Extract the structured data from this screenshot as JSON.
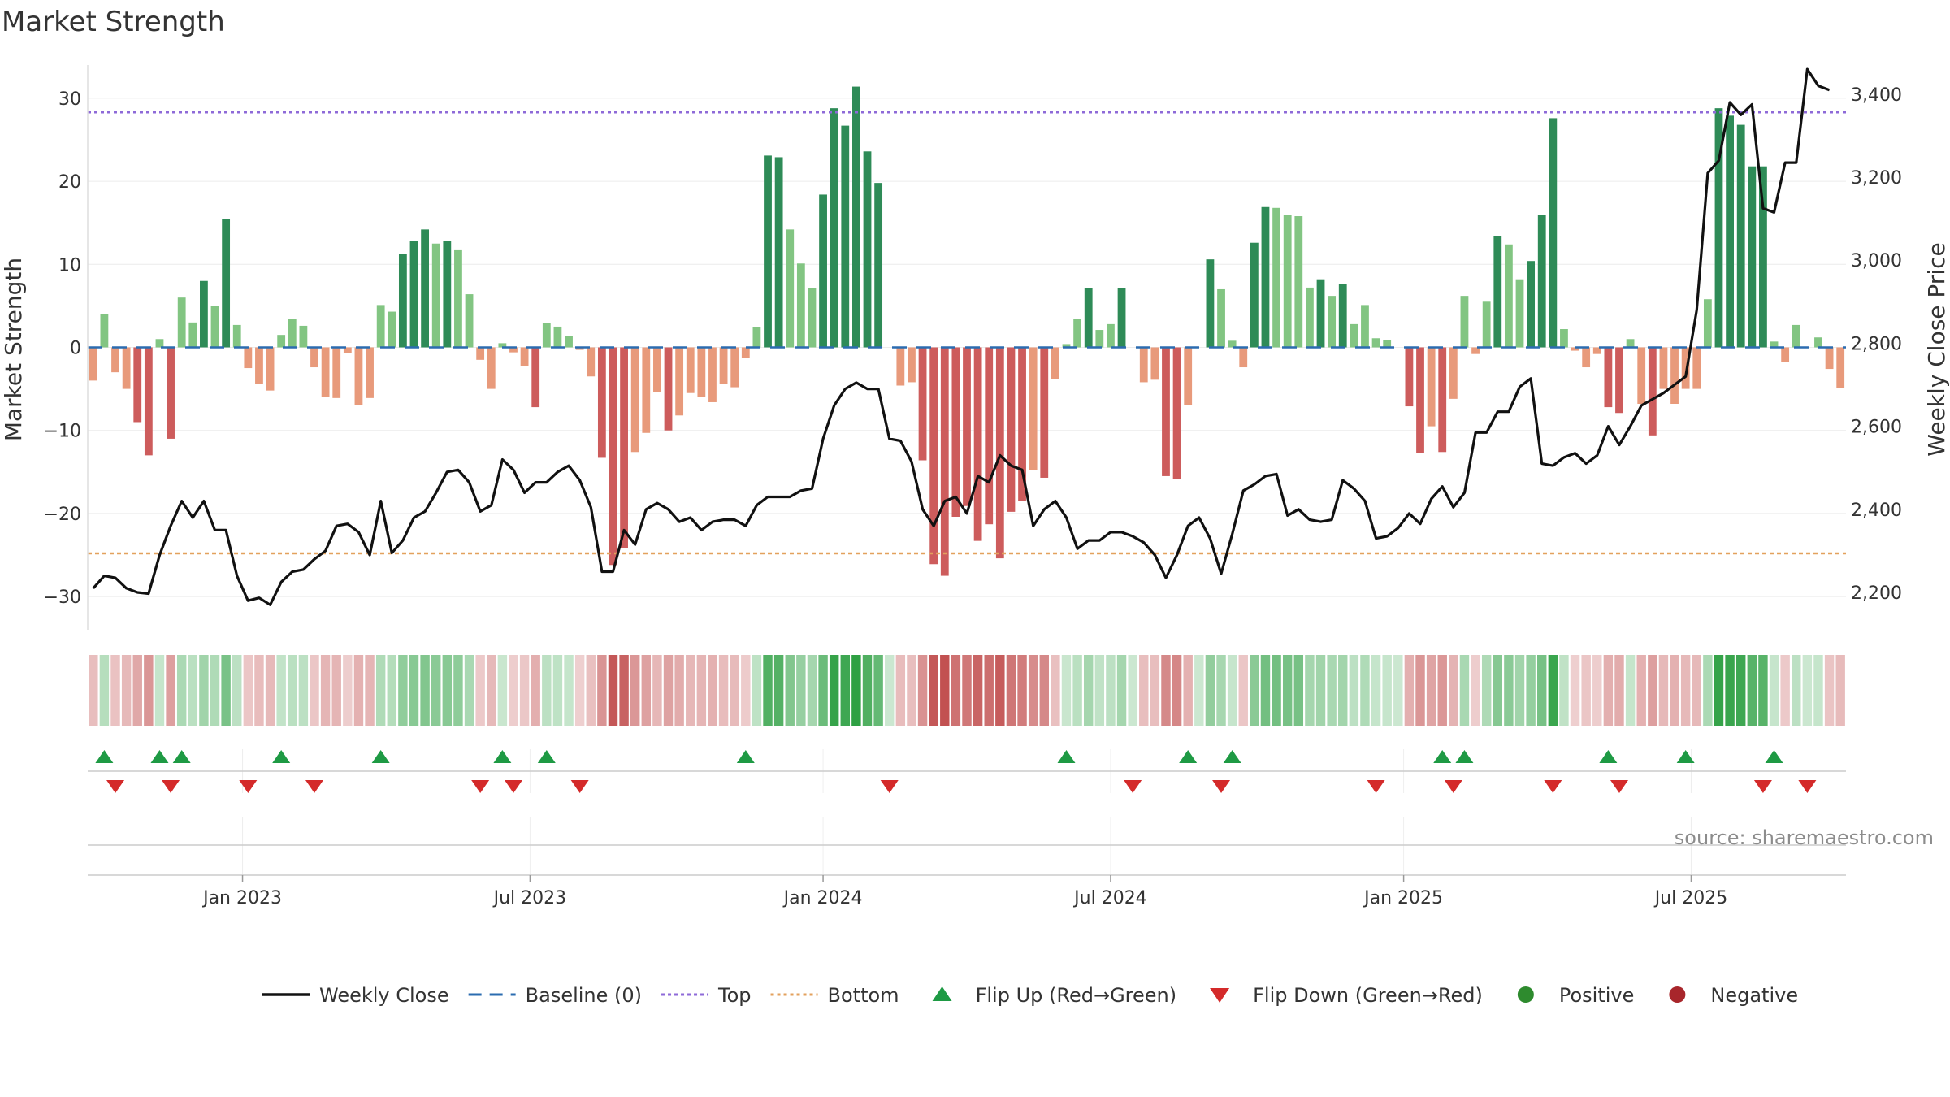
{
  "chart_data": {
    "type": "bar",
    "title": "Market Strength",
    "ylabel": "Market Strength",
    "y2label": "Weekly Close Price",
    "ylim": [
      -34,
      34
    ],
    "y2lim": [
      2110,
      3470
    ],
    "yticks": [
      30,
      20,
      10,
      0,
      -10,
      -20,
      -30
    ],
    "ytick_labels": [
      "30",
      "20",
      "10",
      "0",
      "−10",
      "−20",
      "−30"
    ],
    "y2ticks": [
      3400,
      3200,
      3000,
      2800,
      2600,
      2400,
      2200
    ],
    "y2tick_labels": [
      "3,400",
      "3,200",
      "3,000",
      "2,800",
      "2,600",
      "2,400",
      "2,200"
    ],
    "top_level": 28.3,
    "bottom_level": -24.8,
    "x_range": [
      0,
      157
    ],
    "xticks": [
      {
        "pos": 14,
        "label": "Jan 2023"
      },
      {
        "pos": 40,
        "label": "Jul 2023"
      },
      {
        "pos": 66.5,
        "label": "Jan 2024"
      },
      {
        "pos": 92.5,
        "label": "Jul 2024"
      },
      {
        "pos": 119,
        "label": "Jan 2025"
      },
      {
        "pos": 145,
        "label": "Jul 2025"
      }
    ],
    "strength": [
      -4,
      4,
      -3,
      -5,
      -9,
      -13,
      1,
      -11,
      6,
      3,
      8,
      5,
      15.5,
      2.7,
      -2.5,
      -4.4,
      -5.2,
      1.5,
      3.4,
      2.6,
      -2.4,
      -6,
      -6.1,
      -0.7,
      -6.9,
      -6.1,
      5.1,
      4.3,
      11.3,
      12.8,
      14.2,
      12.5,
      12.8,
      11.7,
      6.4,
      -1.5,
      -5,
      0.5,
      -0.6,
      -2.2,
      -7.2,
      2.9,
      2.5,
      1.4,
      -0.3,
      -3.5,
      -13.3,
      -26.2,
      -24.2,
      -12.6,
      -10.3,
      -5.4,
      -10,
      -8.2,
      -5.5,
      -6,
      -6.6,
      -4.4,
      -4.8,
      -1.3,
      2.4,
      23.1,
      22.9,
      14.2,
      10.1,
      7.1,
      18.4,
      28.8,
      26.7,
      31.4,
      23.6,
      19.8,
      0,
      -4.6,
      -4.2,
      -13.6,
      -26.1,
      -27.5,
      -20.4,
      -19.1,
      -23.3,
      -21.3,
      -25.4,
      -19.8,
      -18.5,
      -14.8,
      -15.7,
      -3.8,
      0.4,
      3.4,
      7.1,
      2.1,
      2.8,
      7.1,
      0,
      -4.2,
      -3.9,
      -15.5,
      -15.9,
      -6.9,
      0,
      10.6,
      7,
      0.8,
      -2.4,
      12.6,
      16.9,
      16.8,
      15.9,
      15.8,
      7.2,
      8.2,
      6.2,
      7.6,
      2.8,
      5.1,
      1.1,
      0.9,
      0,
      -7.1,
      -12.7,
      -9.5,
      -12.6,
      -6.2,
      6.2,
      -0.8,
      5.5,
      13.4,
      12.4,
      8.2,
      10.4,
      15.9,
      27.6,
      2.2,
      -0.4,
      -2.4,
      -0.8,
      -7.2,
      -7.9,
      1,
      -6.8,
      -10.6,
      -5,
      -6.8,
      -5,
      -5,
      5.8,
      28.8,
      27.9,
      26.8,
      21.8,
      21.8,
      0.7,
      -1.8,
      2.7,
      0,
      1.2,
      -2.6,
      -4.9
    ],
    "close": [
      2210,
      2240,
      2235,
      2210,
      2200,
      2197,
      2290,
      2360,
      2420,
      2380,
      2420,
      2350,
      2350,
      2240,
      2180,
      2187,
      2170,
      2225,
      2250,
      2255,
      2280,
      2300,
      2360,
      2365,
      2345,
      2290,
      2420,
      2295,
      2325,
      2380,
      2395,
      2440,
      2490,
      2495,
      2465,
      2395,
      2410,
      2520,
      2495,
      2440,
      2465,
      2465,
      2490,
      2505,
      2470,
      2405,
      2250,
      2250,
      2350,
      2315,
      2400,
      2415,
      2400,
      2370,
      2380,
      2350,
      2370,
      2375,
      2375,
      2360,
      2410,
      2430,
      2430,
      2430,
      2445,
      2450,
      2570,
      2650,
      2690,
      2705,
      2690,
      2690,
      2570,
      2565,
      2515,
      2400,
      2360,
      2420,
      2430,
      2390,
      2480,
      2465,
      2530,
      2505,
      2495,
      2360,
      2400,
      2420,
      2380,
      2305,
      2325,
      2325,
      2345,
      2345,
      2335,
      2320,
      2290,
      2235,
      2290,
      2360,
      2380,
      2330,
      2245,
      2340,
      2445,
      2460,
      2480,
      2485,
      2385,
      2400,
      2375,
      2370,
      2375,
      2470,
      2450,
      2420,
      2330,
      2335,
      2355,
      2390,
      2365,
      2425,
      2455,
      2405,
      2440,
      2585,
      2585,
      2635,
      2635,
      2695,
      2715,
      2510,
      2505,
      2525,
      2535,
      2510,
      2530,
      2600,
      2555,
      2600,
      2650,
      2665,
      2680,
      2700,
      2720,
      2880,
      3210,
      3240,
      3380,
      3350,
      3375,
      3125,
      3115,
      3235,
      3235,
      3460,
      3420,
      3410
    ],
    "flip_up_x": [
      1,
      6,
      8,
      17,
      26,
      37,
      41,
      59,
      88,
      99,
      103,
      122,
      124,
      137,
      144,
      152
    ],
    "flip_down_x": [
      2,
      7,
      14,
      20,
      35,
      38,
      44,
      72,
      94,
      102,
      116,
      123,
      132,
      138,
      151,
      155
    ],
    "source_text": "source: sharemaestro.com",
    "legend": [
      {
        "label": "Weekly Close",
        "kind": "line",
        "color": "#111111"
      },
      {
        "label": "Baseline (0)",
        "kind": "dash",
        "color": "#2b6cb0"
      },
      {
        "label": "Top",
        "kind": "dot",
        "color": "#8e6ad8"
      },
      {
        "label": "Bottom",
        "kind": "dot",
        "color": "#e3a15d"
      },
      {
        "label": "Flip Up (Red→Green)",
        "kind": "tri-up",
        "color": "#1e9a44"
      },
      {
        "label": "Flip Down (Green→Red)",
        "kind": "tri-down",
        "color": "#d42a2a"
      },
      {
        "label": "Positive",
        "kind": "circle",
        "color": "#2e8b2e"
      },
      {
        "label": "Negative",
        "kind": "circle",
        "color": "#a8262b"
      }
    ],
    "colors": {
      "pos_strong": "#2e8b57",
      "pos_weak": "#82c582",
      "neg_strong": "#cd5c5c",
      "neg_weak": "#e89a7b",
      "close": "#111111",
      "baseline": "#2b6cb0",
      "top": "#8e6ad8",
      "bottom": "#e3a15d",
      "flip_up": "#1e9a44",
      "flip_down": "#d42a2a"
    }
  }
}
